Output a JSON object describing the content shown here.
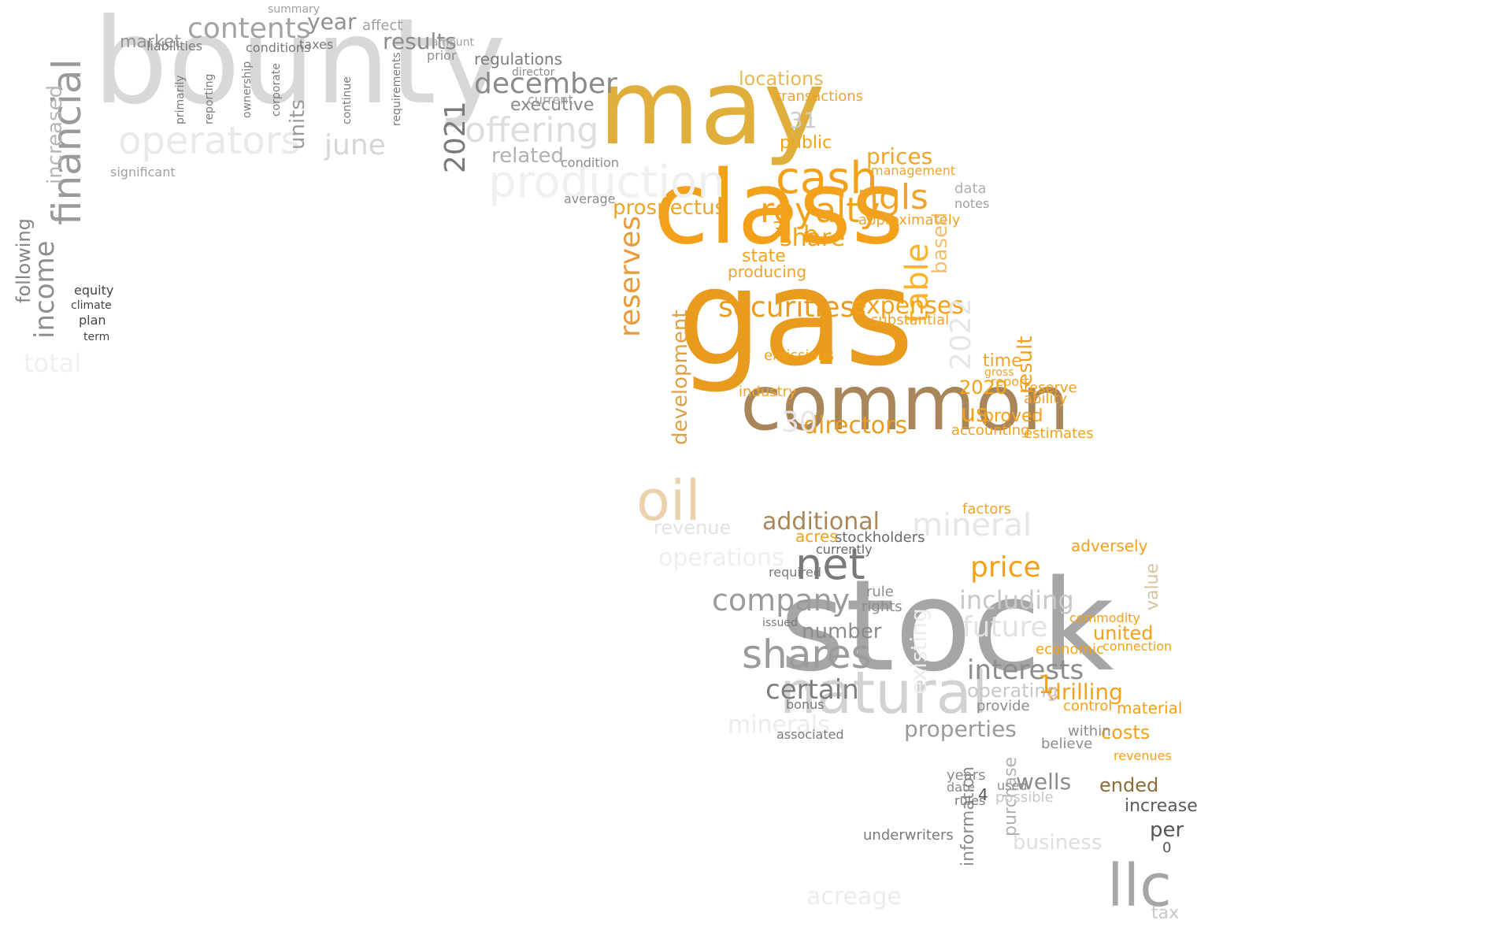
{
  "words": [
    {
      "text": "bounty",
      "color": "#d8d8d8"
    },
    {
      "text": "may",
      "color": "#e0ae3a"
    },
    {
      "text": "class",
      "color": "#f3a11b"
    },
    {
      "text": "gas",
      "color": "#e99b1d"
    },
    {
      "text": "common",
      "color": "#a8865a"
    },
    {
      "text": "stock",
      "color": "#a6a6a6"
    },
    {
      "text": "natural",
      "color": "#d2d2d2"
    },
    {
      "text": "financial",
      "color": "#9a9a9a"
    },
    {
      "text": "operators",
      "color": "#e9e9e9"
    },
    {
      "text": "production",
      "color": "#f0f0f0"
    },
    {
      "text": "offering",
      "color": "#dedede"
    },
    {
      "text": "contents",
      "color": "#a3a3a3"
    },
    {
      "text": "december",
      "color": "#8a8a8a"
    },
    {
      "text": "2021",
      "color": "#7a7a7a"
    },
    {
      "text": "june",
      "color": "#d6d6d6"
    },
    {
      "text": "results",
      "color": "#8c8c8c"
    },
    {
      "text": "income",
      "color": "#8f8f8f"
    },
    {
      "text": "market",
      "color": "#959595"
    },
    {
      "text": "year",
      "color": "#909090"
    },
    {
      "text": "executive",
      "color": "#888888"
    },
    {
      "text": "related",
      "color": "#b0b0b0"
    },
    {
      "text": "regulations",
      "color": "#7d7d7d"
    },
    {
      "text": "units",
      "color": "#9a9a9a"
    },
    {
      "text": "increased",
      "color": "#b6b6b6"
    },
    {
      "text": "following",
      "color": "#858585"
    },
    {
      "text": "cash",
      "color": "#f3a11b"
    },
    {
      "text": "royalty",
      "color": "#f3a11b"
    },
    {
      "text": "ngls",
      "color": "#f0a32a"
    },
    {
      "text": "prices",
      "color": "#f0a32a"
    },
    {
      "text": "locations",
      "color": "#e6b85c"
    },
    {
      "text": "share",
      "color": "#f3a11b"
    },
    {
      "text": "public",
      "color": "#f3a11b"
    },
    {
      "text": "prospectus",
      "color": "#f0a32a"
    },
    {
      "text": "securities",
      "color": "#e99b1d"
    },
    {
      "text": "reserves",
      "color": "#ea9a3a"
    },
    {
      "text": "development",
      "color": "#e0a04a"
    },
    {
      "text": "table",
      "color": "#ffb22a"
    },
    {
      "text": "based",
      "color": "#f0c070"
    },
    {
      "text": "expenses",
      "color": "#f3a11b"
    },
    {
      "text": "directors",
      "color": "#e99b1d"
    },
    {
      "text": "additional",
      "color": "#a8865a"
    },
    {
      "text": "oil",
      "color": "#ecd2ac"
    },
    {
      "text": "2022",
      "color": "#e6e6e6"
    },
    {
      "text": "2020",
      "color": "#f3a11b"
    },
    {
      "text": "us",
      "color": "#f3a11b"
    },
    {
      "text": "proved",
      "color": "#f3a11b"
    },
    {
      "text": "time",
      "color": "#f0a32a"
    },
    {
      "text": "net",
      "color": "#7a7a7a"
    },
    {
      "text": "company",
      "color": "#9b9b9b"
    },
    {
      "text": "shares",
      "color": "#9b9b9b"
    },
    {
      "text": "certain",
      "color": "#7e7e7e"
    },
    {
      "text": "price",
      "color": "#f3a11b"
    },
    {
      "text": "including",
      "color": "#c8c8c8"
    },
    {
      "text": "future",
      "color": "#e2e2e2"
    },
    {
      "text": "interests",
      "color": "#8c8c8c"
    },
    {
      "text": "drilling",
      "color": "#f3a11b"
    },
    {
      "text": "properties",
      "color": "#999999"
    },
    {
      "text": "wells",
      "color": "#8c8c8c"
    },
    {
      "text": "costs",
      "color": "#f3a11b"
    },
    {
      "text": "ended",
      "color": "#8b6d3a"
    },
    {
      "text": "increase",
      "color": "#5a5a5a"
    },
    {
      "text": "per",
      "color": "#555555"
    },
    {
      "text": "llc",
      "color": "#a6a6a6"
    },
    {
      "text": "tax",
      "color": "#c8c8c8"
    },
    {
      "text": "mineral",
      "color": "#e6e6e6"
    },
    {
      "text": "minerals",
      "color": "#ececec"
    },
    {
      "text": "acreage",
      "color": "#ececec"
    },
    {
      "text": "business",
      "color": "#dedede"
    },
    {
      "text": "information",
      "color": "#8c8c8c"
    },
    {
      "text": "purchase",
      "color": "#b0b0b0"
    },
    {
      "text": "underwriters",
      "color": "#7a7a7a"
    },
    {
      "text": "existing",
      "color": "#ececec"
    },
    {
      "text": "operations",
      "color": "#eeeeee"
    },
    {
      "text": "revenue",
      "color": "#e2e2e2"
    },
    {
      "text": "number",
      "color": "#8c8c8c"
    },
    {
      "text": "stockholders",
      "color": "#6a6a6a"
    },
    {
      "text": "acres",
      "color": "#f3a11b"
    },
    {
      "text": "transactions",
      "color": "#f0a32a"
    },
    {
      "text": "management",
      "color": "#f0a32a"
    },
    {
      "text": "approximately",
      "color": "#f0a32a"
    },
    {
      "text": "data",
      "color": "#b0b0b0"
    },
    {
      "text": "notes",
      "color": "#a0a0a0"
    },
    {
      "text": "state",
      "color": "#f3a11b"
    },
    {
      "text": "producing",
      "color": "#f0a32a"
    },
    {
      "text": "emissions",
      "color": "#f3a11b"
    },
    {
      "text": "industry",
      "color": "#f0a32a"
    },
    {
      "text": "accounting",
      "color": "#f3a11b"
    },
    {
      "text": "estimates",
      "color": "#f3a11b"
    },
    {
      "text": "ability",
      "color": "#f0a32a"
    },
    {
      "text": "factors",
      "color": "#f0a32a"
    },
    {
      "text": "adversely",
      "color": "#f3a11b"
    },
    {
      "text": "united",
      "color": "#f3a11b"
    },
    {
      "text": "economic",
      "color": "#f3a11b"
    },
    {
      "text": "connection",
      "color": "#f3a11b"
    },
    {
      "text": "commodity",
      "color": "#f3a11b"
    },
    {
      "text": "material",
      "color": "#f3a11b"
    },
    {
      "text": "revenues",
      "color": "#f3a11b"
    },
    {
      "text": "control",
      "color": "#f3a11b"
    },
    {
      "text": "within",
      "color": "#8c8c8c"
    },
    {
      "text": "believe",
      "color": "#8c8c8c"
    },
    {
      "text": "operating",
      "color": "#c8c8c8"
    },
    {
      "text": "provide",
      "color": "#8c8c8c"
    },
    {
      "text": "years",
      "color": "#8c8c8c"
    },
    {
      "text": "rules",
      "color": "#7a7a7a"
    },
    {
      "text": "date",
      "color": "#8c8c8c"
    },
    {
      "text": "used",
      "color": "#8c8c8c"
    },
    {
      "text": "possible",
      "color": "#c8c8c8"
    },
    {
      "text": "bonus",
      "color": "#7a7a7a"
    },
    {
      "text": "associated",
      "color": "#7a7a7a"
    },
    {
      "text": "rights",
      "color": "#8c8c8c"
    },
    {
      "text": "rule",
      "color": "#8c8c8c"
    },
    {
      "text": "issued",
      "color": "#7a7a7a"
    },
    {
      "text": "required",
      "color": "#7a7a7a"
    },
    {
      "text": "currently",
      "color": "#6a6a6a"
    },
    {
      "text": "average",
      "color": "#8c8c8c"
    },
    {
      "text": "director",
      "color": "#8c8c8c"
    },
    {
      "text": "current",
      "color": "#a0a0a0"
    },
    {
      "text": "condition",
      "color": "#8c8c8c"
    },
    {
      "text": "amount",
      "color": "#a0a0a0"
    },
    {
      "text": "affect",
      "color": "#a0a0a0"
    },
    {
      "text": "prior",
      "color": "#8c8c8c"
    },
    {
      "text": "summary",
      "color": "#a0a0a0"
    },
    {
      "text": "taxes",
      "color": "#7a7a7a"
    },
    {
      "text": "liabilities",
      "color": "#7a7a7a"
    },
    {
      "text": "conditions",
      "color": "#7a7a7a"
    },
    {
      "text": "significant",
      "color": "#a0a0a0"
    },
    {
      "text": "primarily",
      "color": "#7a7a7a"
    },
    {
      "text": "corporate",
      "color": "#7a7a7a"
    },
    {
      "text": "ownership",
      "color": "#7a7a7a"
    },
    {
      "text": "reporting",
      "color": "#7a7a7a"
    },
    {
      "text": "continue",
      "color": "#7a7a7a"
    },
    {
      "text": "requirements",
      "color": "#7a7a7a"
    },
    {
      "text": "equity",
      "color": "#444444"
    },
    {
      "text": "climate",
      "color": "#444444"
    },
    {
      "text": "plan",
      "color": "#444444"
    },
    {
      "text": "term",
      "color": "#444444"
    },
    {
      "text": "total",
      "color": "#f0f0f0"
    },
    {
      "text": "value",
      "color": "#d8c49a"
    },
    {
      "text": "result",
      "color": "#f3a11b"
    },
    {
      "text": "reserve",
      "color": "#f3a11b"
    },
    {
      "text": "report",
      "color": "#f0a32a"
    },
    {
      "text": "gross",
      "color": "#f0a32a"
    },
    {
      "text": "substantial",
      "color": "#f0a32a"
    },
    {
      "text": "31",
      "color": "#cccccc"
    },
    {
      "text": "30",
      "color": "#e6e6e6"
    },
    {
      "text": "3",
      "color": "#f3a11b"
    },
    {
      "text": "b",
      "color": "#f3a11b"
    },
    {
      "text": "1",
      "color": "#f3a11b"
    },
    {
      "text": "4",
      "color": "#555555"
    },
    {
      "text": "0",
      "color": "#555555"
    }
  ]
}
